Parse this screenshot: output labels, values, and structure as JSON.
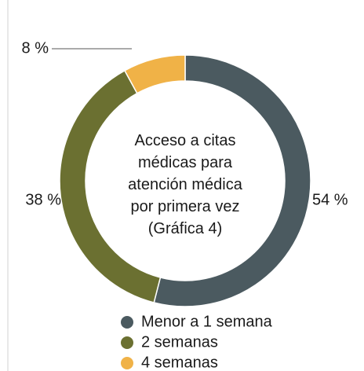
{
  "chart_data": {
    "type": "donut",
    "title": "Acceso a citas médicas para atención médica por primera vez (Gráfica 4)",
    "categories": [
      "Menor a 1 semana",
      "2 semanas",
      "4 semanas"
    ],
    "values": [
      54,
      38,
      8
    ],
    "value_labels": [
      "54 %",
      "38 %",
      "8 %"
    ],
    "colors": [
      "#4b5a60",
      "#6b7031",
      "#f0b247"
    ],
    "legend": "bottom"
  }
}
